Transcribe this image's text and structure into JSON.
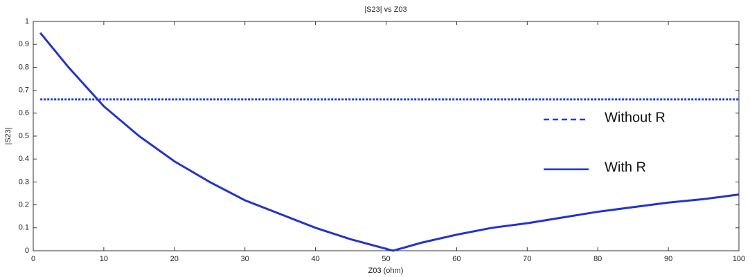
{
  "chart_data": {
    "type": "line",
    "title": "|S23| vs Z03",
    "x_label": "Z03 (ohm)",
    "y_label": "|S23|",
    "xlim": [
      0,
      100
    ],
    "xticks": [
      0,
      10,
      20,
      30,
      40,
      50,
      60,
      70,
      80,
      90,
      100
    ],
    "ylim": [
      0,
      1
    ],
    "yticks": [
      0,
      0.1,
      0.2,
      0.3,
      0.4,
      0.5,
      0.6,
      0.7,
      0.8,
      0.9,
      1
    ],
    "grid": false,
    "legend": "right",
    "series": [
      {
        "name": "Without R",
        "color": "#1f3fd6",
        "style": "dotted",
        "x": [
          1,
          100
        ],
        "values": [
          0.66,
          0.66
        ]
      },
      {
        "name": "With R",
        "color": "#2233cc",
        "style": "solid",
        "x": [
          1,
          5,
          10,
          15,
          20,
          25,
          30,
          35,
          40,
          45,
          51,
          55,
          60,
          65,
          70,
          75,
          80,
          85,
          90,
          95,
          100
        ],
        "values": [
          0.95,
          0.8,
          0.63,
          0.5,
          0.39,
          0.3,
          0.22,
          0.16,
          0.1,
          0.05,
          0,
          0.035,
          0.07,
          0.1,
          0.12,
          0.145,
          0.17,
          0.19,
          0.21,
          0.225,
          0.245
        ]
      }
    ]
  }
}
